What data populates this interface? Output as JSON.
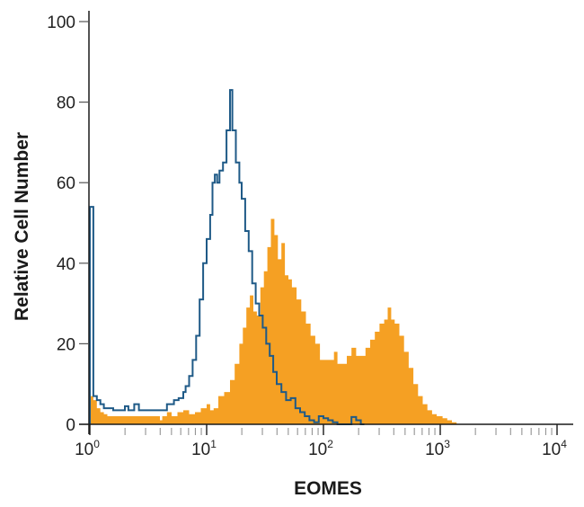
{
  "chart_data": {
    "type": "histogram",
    "title": "",
    "xlabel": "EOMES",
    "ylabel": "Relative Cell Number",
    "x_scale": "log",
    "xlim": [
      1,
      10000
    ],
    "ylim": [
      0,
      100
    ],
    "x_ticks": [
      {
        "base": "10",
        "exp": "0",
        "value": 1
      },
      {
        "base": "10",
        "exp": "1",
        "value": 10
      },
      {
        "base": "10",
        "exp": "2",
        "value": 100
      },
      {
        "base": "10",
        "exp": "3",
        "value": 1000
      },
      {
        "base": "10",
        "exp": "4",
        "value": 10000
      }
    ],
    "y_ticks": [
      0,
      20,
      40,
      60,
      80,
      100
    ],
    "grid": false,
    "legend": [],
    "colors": {
      "stained": "#F5A023",
      "control": "#1F5A87",
      "axis": "#1a1a1a"
    },
    "series": [
      {
        "name": "stained (filled orange)",
        "style": "filled",
        "note": "points are [log10(x), relative cell number]",
        "points": [
          [
            0.0,
            7
          ],
          [
            0.03,
            6
          ],
          [
            0.06,
            4
          ],
          [
            0.09,
            3
          ],
          [
            0.12,
            2.5
          ],
          [
            0.15,
            2
          ],
          [
            0.25,
            2
          ],
          [
            0.35,
            2
          ],
          [
            0.45,
            2
          ],
          [
            0.55,
            2
          ],
          [
            0.6,
            1
          ],
          [
            0.62,
            2
          ],
          [
            0.66,
            3
          ],
          [
            0.7,
            2
          ],
          [
            0.75,
            3
          ],
          [
            0.8,
            3.5
          ],
          [
            0.85,
            2.5
          ],
          [
            0.9,
            3
          ],
          [
            0.95,
            4
          ],
          [
            1.0,
            5
          ],
          [
            1.03,
            3.5
          ],
          [
            1.06,
            4
          ],
          [
            1.1,
            7
          ],
          [
            1.15,
            8
          ],
          [
            1.2,
            11
          ],
          [
            1.24,
            15
          ],
          [
            1.28,
            20
          ],
          [
            1.31,
            24
          ],
          [
            1.34,
            29
          ],
          [
            1.37,
            32
          ],
          [
            1.4,
            28
          ],
          [
            1.43,
            27
          ],
          [
            1.46,
            34
          ],
          [
            1.49,
            38
          ],
          [
            1.52,
            44
          ],
          [
            1.55,
            51
          ],
          [
            1.58,
            47
          ],
          [
            1.61,
            41
          ],
          [
            1.64,
            45
          ],
          [
            1.67,
            37
          ],
          [
            1.7,
            36
          ],
          [
            1.73,
            34
          ],
          [
            1.77,
            31
          ],
          [
            1.81,
            28
          ],
          [
            1.85,
            25
          ],
          [
            1.89,
            22
          ],
          [
            1.93,
            20
          ],
          [
            1.97,
            16
          ],
          [
            2.01,
            16
          ],
          [
            2.05,
            16
          ],
          [
            2.09,
            18
          ],
          [
            2.12,
            15
          ],
          [
            2.16,
            15
          ],
          [
            2.2,
            17
          ],
          [
            2.24,
            19
          ],
          [
            2.28,
            17
          ],
          [
            2.32,
            17
          ],
          [
            2.36,
            19
          ],
          [
            2.4,
            21
          ],
          [
            2.44,
            23
          ],
          [
            2.48,
            25
          ],
          [
            2.52,
            26
          ],
          [
            2.55,
            29
          ],
          [
            2.58,
            26
          ],
          [
            2.61,
            25
          ],
          [
            2.65,
            22
          ],
          [
            2.69,
            18
          ],
          [
            2.73,
            14
          ],
          [
            2.77,
            10
          ],
          [
            2.81,
            7
          ],
          [
            2.85,
            5
          ],
          [
            2.89,
            3.5
          ],
          [
            2.93,
            2.5
          ],
          [
            2.97,
            2
          ],
          [
            3.02,
            1.5
          ],
          [
            3.06,
            1
          ],
          [
            3.1,
            0.5
          ],
          [
            3.14,
            0
          ]
        ]
      },
      {
        "name": "isotype control (open blue)",
        "style": "line",
        "note": "points are [log10(x), relative cell number]",
        "points": [
          [
            0.0,
            54
          ],
          [
            0.03,
            7
          ],
          [
            0.06,
            6
          ],
          [
            0.09,
            5
          ],
          [
            0.12,
            4
          ],
          [
            0.16,
            4
          ],
          [
            0.2,
            3.5
          ],
          [
            0.25,
            3.5
          ],
          [
            0.3,
            4.5
          ],
          [
            0.33,
            3.5
          ],
          [
            0.38,
            5
          ],
          [
            0.42,
            3.5
          ],
          [
            0.5,
            3.5
          ],
          [
            0.6,
            3.5
          ],
          [
            0.66,
            5
          ],
          [
            0.72,
            6
          ],
          [
            0.76,
            6.5
          ],
          [
            0.8,
            8
          ],
          [
            0.82,
            9.5
          ],
          [
            0.85,
            12
          ],
          [
            0.88,
            16
          ],
          [
            0.91,
            22
          ],
          [
            0.94,
            31
          ],
          [
            0.97,
            40
          ],
          [
            1.0,
            46
          ],
          [
            1.03,
            52
          ],
          [
            1.05,
            60
          ],
          [
            1.07,
            62
          ],
          [
            1.09,
            60
          ],
          [
            1.11,
            63
          ],
          [
            1.14,
            65
          ],
          [
            1.17,
            73
          ],
          [
            1.2,
            83
          ],
          [
            1.22,
            73
          ],
          [
            1.25,
            65
          ],
          [
            1.28,
            60
          ],
          [
            1.3,
            56
          ],
          [
            1.33,
            48
          ],
          [
            1.36,
            43
          ],
          [
            1.39,
            35
          ],
          [
            1.42,
            30
          ],
          [
            1.45,
            27
          ],
          [
            1.48,
            24
          ],
          [
            1.51,
            20
          ],
          [
            1.54,
            17
          ],
          [
            1.57,
            13
          ],
          [
            1.6,
            10
          ],
          [
            1.64,
            8
          ],
          [
            1.68,
            6
          ],
          [
            1.72,
            6.5
          ],
          [
            1.76,
            4
          ],
          [
            1.8,
            3
          ],
          [
            1.84,
            2
          ],
          [
            1.88,
            1
          ],
          [
            1.92,
            0.5
          ],
          [
            1.96,
            2
          ],
          [
            2.0,
            1.5
          ],
          [
            2.04,
            1
          ],
          [
            2.08,
            0.5
          ],
          [
            2.12,
            0
          ],
          [
            2.16,
            0
          ],
          [
            2.2,
            0
          ],
          [
            2.24,
            1.8
          ],
          [
            2.28,
            1
          ],
          [
            2.32,
            0
          ]
        ]
      }
    ]
  }
}
